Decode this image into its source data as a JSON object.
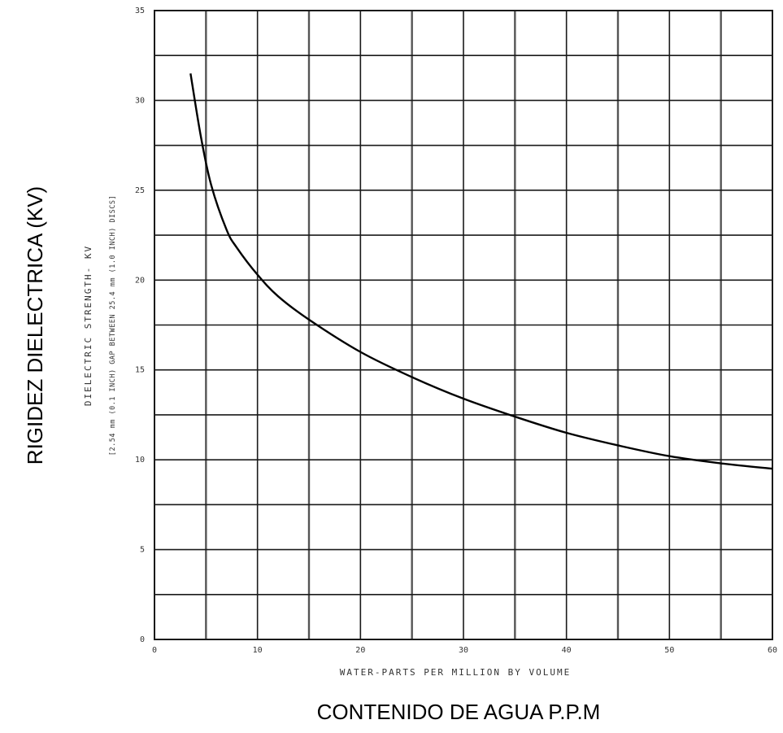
{
  "chart_data": {
    "type": "line",
    "xlabel": "WATER-PARTS PER MILLION BY VOLUME",
    "ylabel": "DIELECTRIC STRENGTH- KV",
    "ylabel_sub": "[2.54 mm (0.1 INCH) GAP BETWEEN 25.4 mm (1.0 INCH) DISCS]",
    "xlabel_es": "CONTENIDO DE AGUA P.P.M",
    "ylabel_es": "RIGIDEZ DIELECTRICA (KV)",
    "xlim": [
      0,
      60
    ],
    "ylim": [
      0,
      35
    ],
    "x_ticks": [
      "0",
      "10",
      "20",
      "30",
      "40",
      "50",
      "60"
    ],
    "y_ticks": [
      "0",
      "5",
      "10",
      "15",
      "20",
      "25",
      "30",
      "35"
    ],
    "grid": true,
    "series": [
      {
        "x": [
          3.5,
          4.5,
          5.5,
          7,
          8,
          10,
          12,
          15,
          20,
          25,
          30,
          35,
          40,
          45,
          50,
          55,
          60
        ],
        "y": [
          31.5,
          28,
          25.3,
          22.8,
          21.8,
          20.3,
          19.1,
          17.8,
          16.0,
          14.6,
          13.4,
          12.4,
          11.5,
          10.8,
          10.2,
          9.8,
          9.5
        ]
      }
    ]
  }
}
